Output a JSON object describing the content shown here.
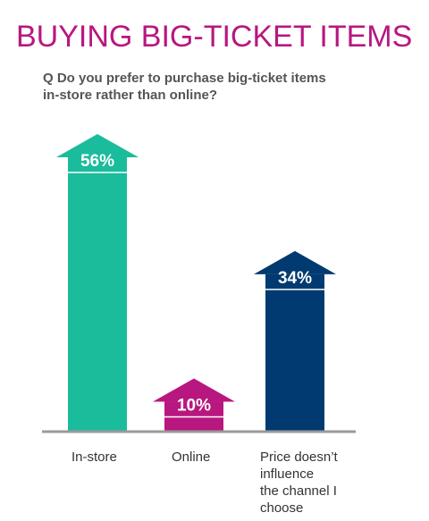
{
  "header": {
    "title": "BUYING BIG-TICKET ITEMS",
    "question_lines": [
      "Q Do you prefer to purchase big-ticket items",
      "in-store rather than online?"
    ]
  },
  "chart_data": {
    "type": "bar",
    "categories": [
      "In-store",
      "Online",
      "Price doesn’t influence the channel I choose"
    ],
    "category_label_lines": [
      [
        "In-store"
      ],
      [
        "Online"
      ],
      [
        "Price doesn’t",
        "influence",
        "the channel I",
        "choose"
      ]
    ],
    "values": [
      56,
      10,
      34
    ],
    "value_labels": [
      "56%",
      "10%",
      "34%"
    ],
    "unit": "%",
    "colors": [
      "#1bbc9b",
      "#b8177f",
      "#003a70"
    ],
    "ylim": [
      0,
      56
    ],
    "grid": false,
    "legend": "none"
  }
}
